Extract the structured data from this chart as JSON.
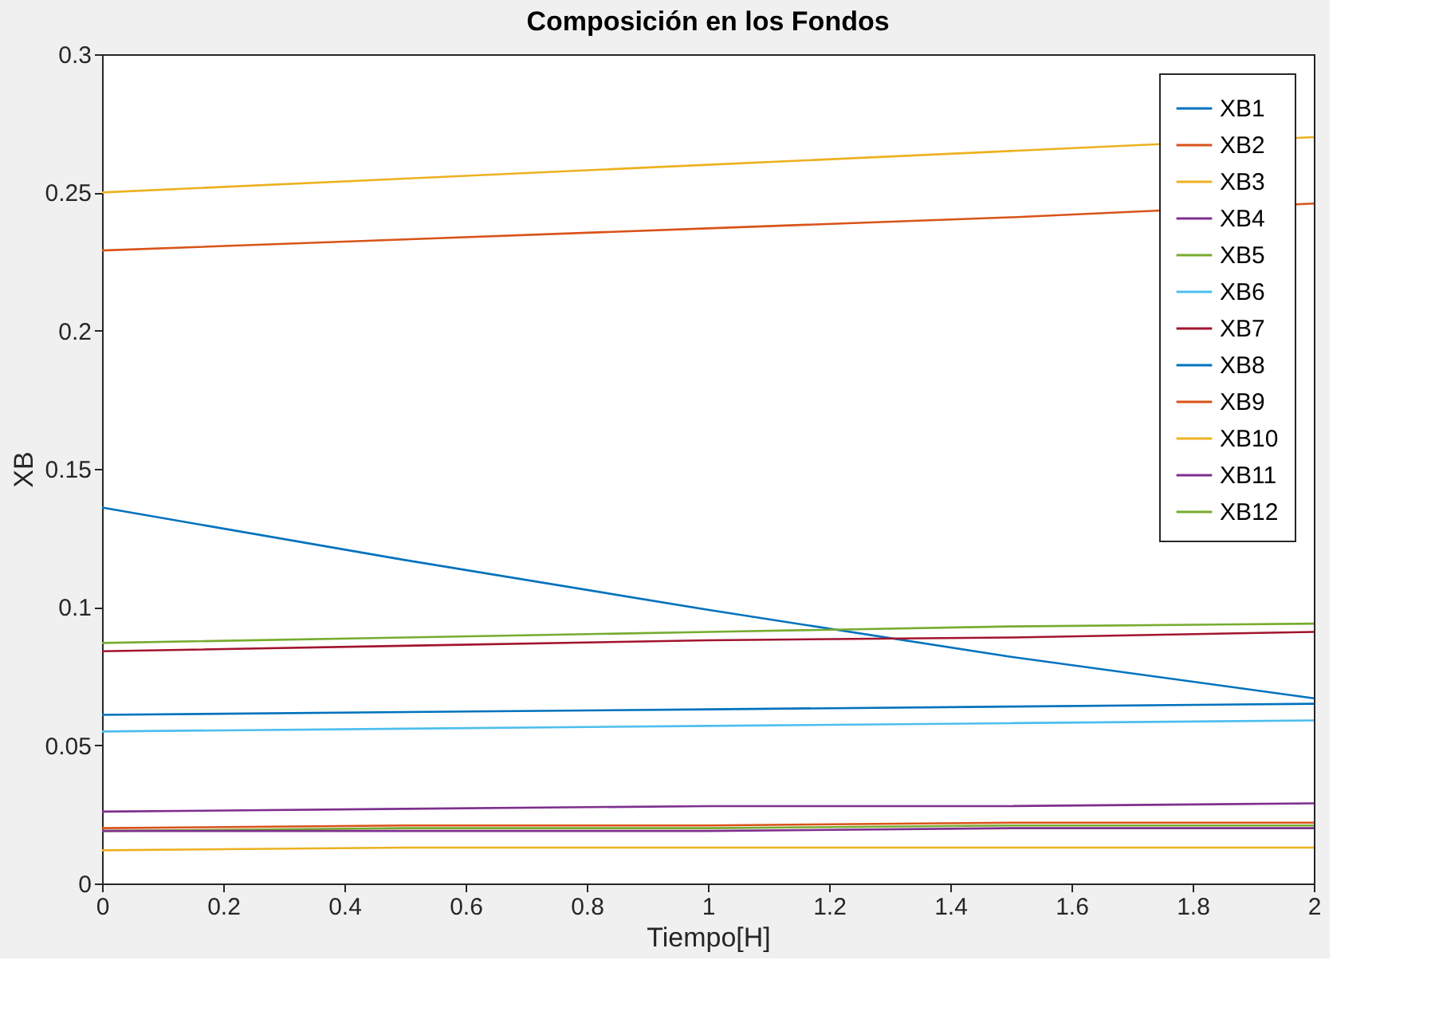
{
  "chart_data": {
    "type": "line",
    "title": "Composición en los Fondos",
    "xlabel": "Tiempo[H]",
    "ylabel": "XB",
    "x": [
      0,
      0.5,
      1,
      1.5,
      2
    ],
    "series": [
      {
        "name": "XB1",
        "color": "#0072bd",
        "values": [
          0.136,
          0.117,
          0.099,
          0.082,
          0.067
        ]
      },
      {
        "name": "XB2",
        "color": "#d95319",
        "values": [
          0.229,
          0.233,
          0.237,
          0.241,
          0.246
        ]
      },
      {
        "name": "XB3",
        "color": "#edb120",
        "values": [
          0.25,
          0.255,
          0.26,
          0.265,
          0.27
        ]
      },
      {
        "name": "XB4",
        "color": "#7e2f8e",
        "values": [
          0.026,
          0.027,
          0.028,
          0.028,
          0.029
        ]
      },
      {
        "name": "XB5",
        "color": "#77ac30",
        "values": [
          0.019,
          0.02,
          0.02,
          0.021,
          0.021
        ]
      },
      {
        "name": "XB6",
        "color": "#4dbeee",
        "values": [
          0.055,
          0.056,
          0.057,
          0.058,
          0.059
        ]
      },
      {
        "name": "XB7",
        "color": "#a2142f",
        "values": [
          0.084,
          0.086,
          0.088,
          0.089,
          0.091
        ]
      },
      {
        "name": "XB8",
        "color": "#0072bd",
        "values": [
          0.061,
          0.062,
          0.063,
          0.064,
          0.065
        ]
      },
      {
        "name": "XB9",
        "color": "#d95319",
        "values": [
          0.02,
          0.021,
          0.021,
          0.022,
          0.022
        ]
      },
      {
        "name": "XB10",
        "color": "#edb120",
        "values": [
          0.012,
          0.013,
          0.013,
          0.013,
          0.013
        ]
      },
      {
        "name": "XB11",
        "color": "#7e2f8e",
        "values": [
          0.019,
          0.019,
          0.019,
          0.02,
          0.02
        ]
      },
      {
        "name": "XB12",
        "color": "#77ac30",
        "values": [
          0.087,
          0.089,
          0.091,
          0.093,
          0.094
        ]
      }
    ],
    "xlim": [
      0,
      2
    ],
    "xticks": [
      0,
      0.2,
      0.4,
      0.6,
      0.8,
      1,
      1.2,
      1.4,
      1.6,
      1.8,
      2
    ],
    "ylim": [
      0,
      0.3
    ],
    "yticks": [
      0,
      0.05,
      0.1,
      0.15,
      0.2,
      0.25,
      0.3
    ],
    "grid": false,
    "legend": "top right",
    "line_style": "solid"
  }
}
